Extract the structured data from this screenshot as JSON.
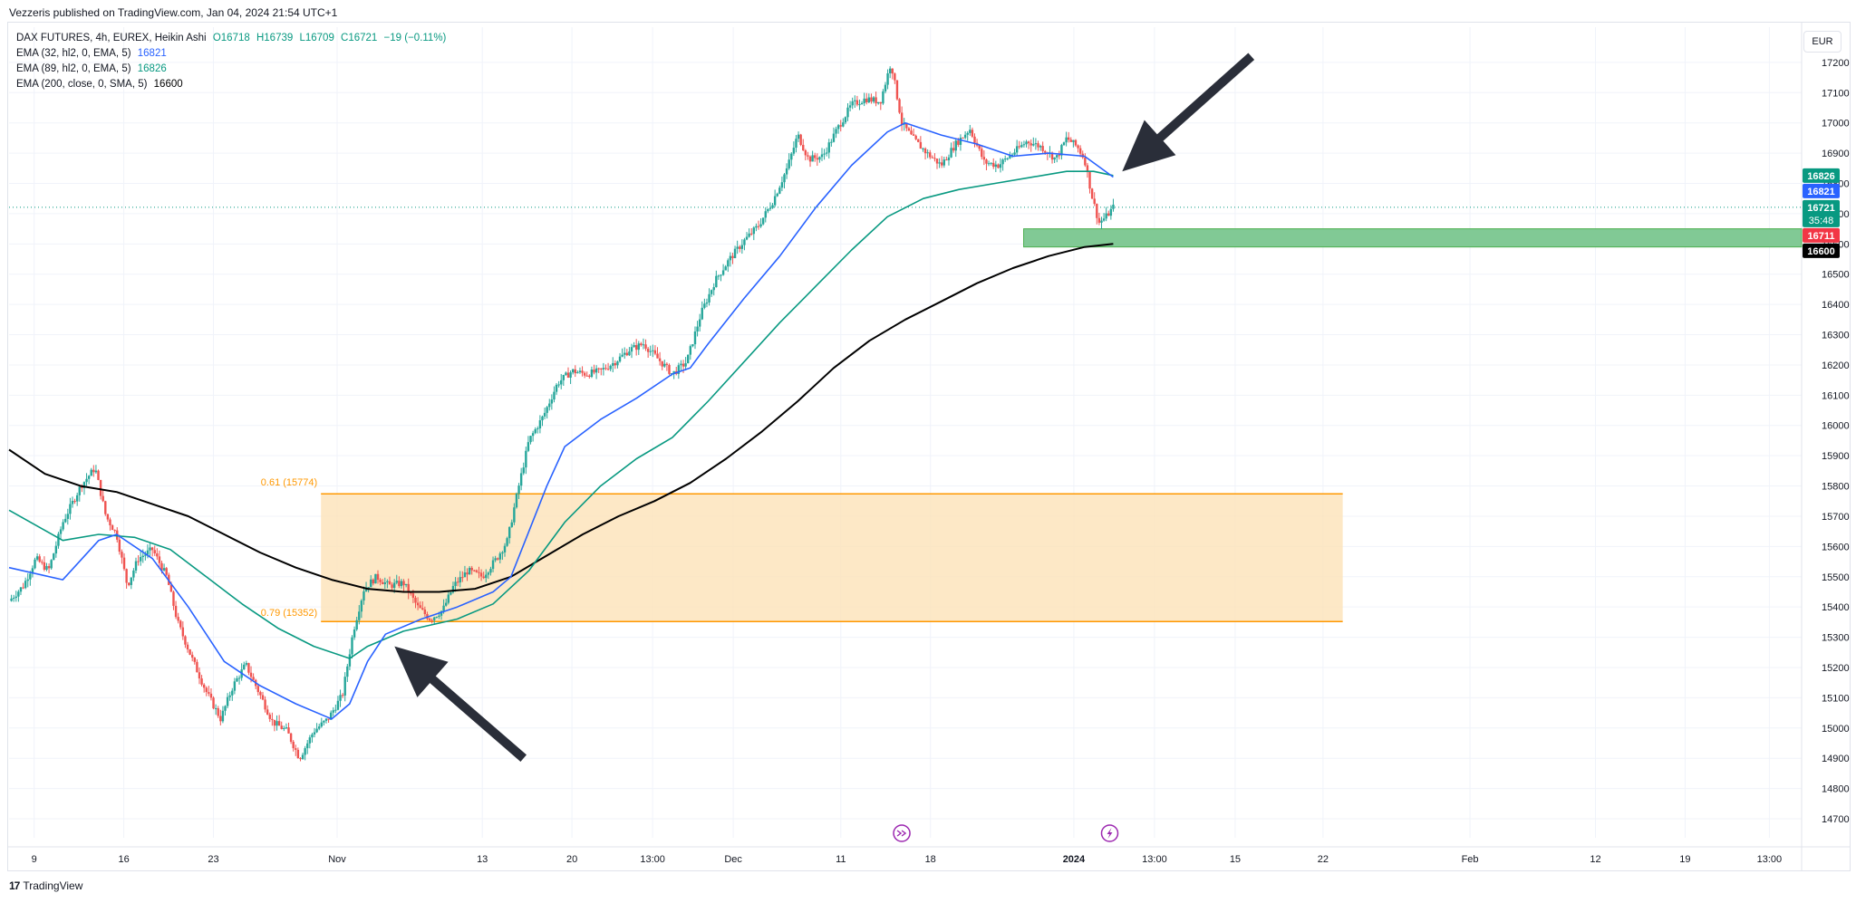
{
  "header": {
    "published_text": "Vezzeris published on TradingView.com, Jan 04, 2024 21:54 UTC+1"
  },
  "legend": {
    "symbol_line": "DAX FUTURES, 4h, EUREX, Heikin Ashi",
    "open": "O16718",
    "high": "H16739",
    "low": "L16709",
    "close": "C16721",
    "change": "−19 (−0.11%)",
    "indicators": [
      {
        "label": "EMA (32, hl2, 0, EMA, 5)",
        "value": "16821",
        "color": "#2962ff"
      },
      {
        "label": "EMA (89, hl2, 0, EMA, 5)",
        "value": "16826",
        "color": "#089981"
      },
      {
        "label": "EMA (200, close, 0, SMA, 5)",
        "value": "16600",
        "color": "#000000"
      }
    ]
  },
  "currency": "EUR",
  "footer": {
    "brand": "TradingView",
    "logo_text": "17"
  },
  "chart_data": {
    "type": "candlestick",
    "style": "Heikin Ashi",
    "interval": "4h",
    "y_axis": {
      "range": [
        14620,
        17300
      ],
      "ticks": [
        14700,
        14800,
        14900,
        15000,
        15100,
        15200,
        15300,
        15400,
        15500,
        15600,
        15700,
        15800,
        15900,
        16000,
        16100,
        16200,
        16300,
        16400,
        16500,
        16600,
        16700,
        16800,
        16900,
        17000,
        17100,
        17200
      ]
    },
    "x_axis": {
      "ticks": [
        {
          "label": "9",
          "frac": 0.014
        },
        {
          "label": "16",
          "frac": 0.064
        },
        {
          "label": "23",
          "frac": 0.114
        },
        {
          "label": "Nov",
          "frac": 0.183
        },
        {
          "label": "13",
          "frac": 0.264
        },
        {
          "label": "20",
          "frac": 0.314
        },
        {
          "label": "13:00",
          "frac": 0.359
        },
        {
          "label": "Dec",
          "frac": 0.404
        },
        {
          "label": "11",
          "frac": 0.464
        },
        {
          "label": "18",
          "frac": 0.514
        },
        {
          "label": "2024",
          "frac": 0.594,
          "bold": true
        },
        {
          "label": "13:00",
          "frac": 0.639
        },
        {
          "label": "15",
          "frac": 0.684
        },
        {
          "label": "22",
          "frac": 0.733
        },
        {
          "label": "Feb",
          "frac": 0.815
        },
        {
          "label": "12",
          "frac": 0.885
        },
        {
          "label": "19",
          "frac": 0.935
        },
        {
          "label": "13:00",
          "frac": 0.982
        }
      ]
    },
    "price_path": [
      [
        0,
        15420
      ],
      [
        0.008,
        15470
      ],
      [
        0.015,
        15560
      ],
      [
        0.022,
        15520
      ],
      [
        0.03,
        15680
      ],
      [
        0.04,
        15800
      ],
      [
        0.048,
        15860
      ],
      [
        0.054,
        15700
      ],
      [
        0.06,
        15640
      ],
      [
        0.066,
        15470
      ],
      [
        0.072,
        15560
      ],
      [
        0.08,
        15590
      ],
      [
        0.088,
        15500
      ],
      [
        0.094,
        15350
      ],
      [
        0.102,
        15230
      ],
      [
        0.11,
        15120
      ],
      [
        0.118,
        15030
      ],
      [
        0.125,
        15140
      ],
      [
        0.132,
        15210
      ],
      [
        0.14,
        15110
      ],
      [
        0.147,
        15020
      ],
      [
        0.155,
        14990
      ],
      [
        0.162,
        14900
      ],
      [
        0.17,
        14990
      ],
      [
        0.178,
        15030
      ],
      [
        0.186,
        15110
      ],
      [
        0.192,
        15320
      ],
      [
        0.198,
        15460
      ],
      [
        0.205,
        15500
      ],
      [
        0.212,
        15470
      ],
      [
        0.22,
        15480
      ],
      [
        0.228,
        15400
      ],
      [
        0.235,
        15360
      ],
      [
        0.242,
        15390
      ],
      [
        0.248,
        15470
      ],
      [
        0.256,
        15520
      ],
      [
        0.264,
        15500
      ],
      [
        0.272,
        15560
      ],
      [
        0.278,
        15620
      ],
      [
        0.284,
        15790
      ],
      [
        0.29,
        15950
      ],
      [
        0.298,
        16030
      ],
      [
        0.306,
        16140
      ],
      [
        0.314,
        16180
      ],
      [
        0.322,
        16170
      ],
      [
        0.33,
        16180
      ],
      [
        0.338,
        16210
      ],
      [
        0.346,
        16250
      ],
      [
        0.354,
        16270
      ],
      [
        0.362,
        16220
      ],
      [
        0.37,
        16170
      ],
      [
        0.378,
        16210
      ],
      [
        0.386,
        16370
      ],
      [
        0.394,
        16480
      ],
      [
        0.402,
        16550
      ],
      [
        0.41,
        16610
      ],
      [
        0.418,
        16660
      ],
      [
        0.426,
        16740
      ],
      [
        0.434,
        16850
      ],
      [
        0.44,
        16960
      ],
      [
        0.446,
        16880
      ],
      [
        0.454,
        16890
      ],
      [
        0.462,
        16980
      ],
      [
        0.47,
        17060
      ],
      [
        0.478,
        17080
      ],
      [
        0.486,
        17070
      ],
      [
        0.492,
        17200
      ],
      [
        0.498,
        17000
      ],
      [
        0.504,
        16950
      ],
      [
        0.512,
        16900
      ],
      [
        0.52,
        16860
      ],
      [
        0.528,
        16930
      ],
      [
        0.536,
        16980
      ],
      [
        0.544,
        16870
      ],
      [
        0.552,
        16860
      ],
      [
        0.56,
        16900
      ],
      [
        0.568,
        16940
      ],
      [
        0.576,
        16920
      ],
      [
        0.584,
        16880
      ],
      [
        0.59,
        16950
      ],
      [
        0.596,
        16920
      ],
      [
        0.6,
        16880
      ],
      [
        0.604,
        16760
      ],
      [
        0.608,
        16670
      ],
      [
        0.612,
        16690
      ],
      [
        0.616,
        16721
      ]
    ],
    "ema_32": [
      [
        0,
        15530
      ],
      [
        0.03,
        15490
      ],
      [
        0.05,
        15620
      ],
      [
        0.06,
        15640
      ],
      [
        0.08,
        15560
      ],
      [
        0.1,
        15400
      ],
      [
        0.12,
        15220
      ],
      [
        0.14,
        15140
      ],
      [
        0.16,
        15080
      ],
      [
        0.18,
        15030
      ],
      [
        0.19,
        15080
      ],
      [
        0.2,
        15220
      ],
      [
        0.21,
        15310
      ],
      [
        0.23,
        15360
      ],
      [
        0.25,
        15400
      ],
      [
        0.27,
        15450
      ],
      [
        0.28,
        15500
      ],
      [
        0.29,
        15650
      ],
      [
        0.3,
        15800
      ],
      [
        0.31,
        15930
      ],
      [
        0.33,
        16020
      ],
      [
        0.35,
        16090
      ],
      [
        0.37,
        16170
      ],
      [
        0.38,
        16190
      ],
      [
        0.39,
        16270
      ],
      [
        0.41,
        16420
      ],
      [
        0.43,
        16560
      ],
      [
        0.45,
        16720
      ],
      [
        0.47,
        16860
      ],
      [
        0.49,
        16970
      ],
      [
        0.5,
        17000
      ],
      [
        0.52,
        16960
      ],
      [
        0.54,
        16930
      ],
      [
        0.56,
        16890
      ],
      [
        0.58,
        16900
      ],
      [
        0.6,
        16890
      ],
      [
        0.616,
        16821
      ]
    ],
    "ema_89": [
      [
        0,
        15720
      ],
      [
        0.03,
        15620
      ],
      [
        0.05,
        15640
      ],
      [
        0.07,
        15630
      ],
      [
        0.09,
        15590
      ],
      [
        0.11,
        15500
      ],
      [
        0.13,
        15410
      ],
      [
        0.15,
        15330
      ],
      [
        0.17,
        15270
      ],
      [
        0.19,
        15230
      ],
      [
        0.2,
        15270
      ],
      [
        0.22,
        15320
      ],
      [
        0.25,
        15360
      ],
      [
        0.27,
        15410
      ],
      [
        0.29,
        15520
      ],
      [
        0.31,
        15680
      ],
      [
        0.33,
        15800
      ],
      [
        0.35,
        15890
      ],
      [
        0.37,
        15960
      ],
      [
        0.39,
        16080
      ],
      [
        0.41,
        16210
      ],
      [
        0.43,
        16340
      ],
      [
        0.45,
        16460
      ],
      [
        0.47,
        16580
      ],
      [
        0.49,
        16690
      ],
      [
        0.51,
        16750
      ],
      [
        0.53,
        16780
      ],
      [
        0.55,
        16800
      ],
      [
        0.57,
        16820
      ],
      [
        0.59,
        16840
      ],
      [
        0.605,
        16840
      ],
      [
        0.616,
        16826
      ]
    ],
    "sma_200": [
      [
        0,
        15920
      ],
      [
        0.02,
        15840
      ],
      [
        0.04,
        15800
      ],
      [
        0.06,
        15780
      ],
      [
        0.08,
        15740
      ],
      [
        0.1,
        15700
      ],
      [
        0.12,
        15640
      ],
      [
        0.14,
        15580
      ],
      [
        0.16,
        15530
      ],
      [
        0.18,
        15490
      ],
      [
        0.2,
        15460
      ],
      [
        0.22,
        15450
      ],
      [
        0.24,
        15450
      ],
      [
        0.26,
        15460
      ],
      [
        0.28,
        15500
      ],
      [
        0.3,
        15570
      ],
      [
        0.32,
        15640
      ],
      [
        0.34,
        15700
      ],
      [
        0.36,
        15750
      ],
      [
        0.38,
        15810
      ],
      [
        0.4,
        15890
      ],
      [
        0.42,
        15980
      ],
      [
        0.44,
        16080
      ],
      [
        0.46,
        16190
      ],
      [
        0.48,
        16280
      ],
      [
        0.5,
        16350
      ],
      [
        0.52,
        16410
      ],
      [
        0.54,
        16470
      ],
      [
        0.56,
        16520
      ],
      [
        0.58,
        16560
      ],
      [
        0.6,
        16590
      ],
      [
        0.616,
        16600
      ]
    ],
    "fib_zone": {
      "top_label": "0.61 (15774)",
      "top_value": 15774,
      "bottom_label": "0.79 (15352)",
      "bottom_value": 15352,
      "x_start_frac": 0.174,
      "x_end_frac": 0.744,
      "fill_color": "#fce2b8",
      "line_color": "#ff9800",
      "label_color": "#ff9800"
    },
    "support_zone": {
      "top_value": 16650,
      "bottom_value": 16590,
      "x_start_frac": 0.566,
      "x_end_frac": 1.0,
      "fill_color": "#81c995",
      "border_color": "#4caf50"
    },
    "last_price_line": 16721,
    "price_labels": [
      {
        "text": "16826",
        "value": 16826,
        "bg": "#089981",
        "fg": "#ffffff"
      },
      {
        "text": "16821",
        "value": 16821,
        "bg": "#2962ff",
        "fg": "#ffffff"
      },
      {
        "text": "16721",
        "value": 16721,
        "bg": "#089981",
        "fg": "#ffffff",
        "sub": "35:48"
      },
      {
        "text": "16711",
        "value": 16711,
        "bg": "#f23645",
        "fg": "#ffffff"
      },
      {
        "text": "16600",
        "value": 16600,
        "bg": "#000000",
        "fg": "#ffffff"
      }
    ],
    "colors": {
      "up": "#26a69a",
      "down": "#ef5350",
      "arrow": "#2a2e39",
      "grid": "#f0f3fa",
      "event_icon": "#9c27b0"
    },
    "arrows": [
      {
        "tip": [
          0.215,
          15270
        ],
        "tail": [
          0.287,
          14900
        ]
      },
      {
        "tip": [
          0.621,
          16840
        ],
        "tail": [
          0.693,
          17220
        ]
      }
    ],
    "event_icons": [
      {
        "name": "forward-icon",
        "frac": 0.498
      },
      {
        "name": "lightning-icon",
        "frac": 0.614
      }
    ]
  }
}
